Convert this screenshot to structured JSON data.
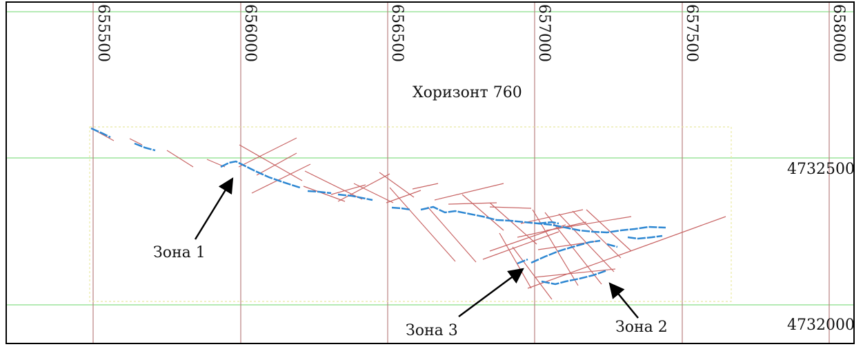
{
  "map": {
    "title": "Хоризонт 760",
    "grid_line_color": "#b98080",
    "northing_line_color": "#9be39b",
    "fault_color": "#c86464",
    "vein_color": "#2d87d2",
    "boundary_color": "#e8e8a0",
    "arrow_color": "#000000"
  },
  "eastings": [
    "655500",
    "656000",
    "656500",
    "657000",
    "657500",
    "658000"
  ],
  "northings": [
    "4732500",
    "4732000"
  ],
  "zones": [
    {
      "label": "Зона 1"
    },
    {
      "label": "Зона 3"
    },
    {
      "label": "Зона 2"
    }
  ]
}
